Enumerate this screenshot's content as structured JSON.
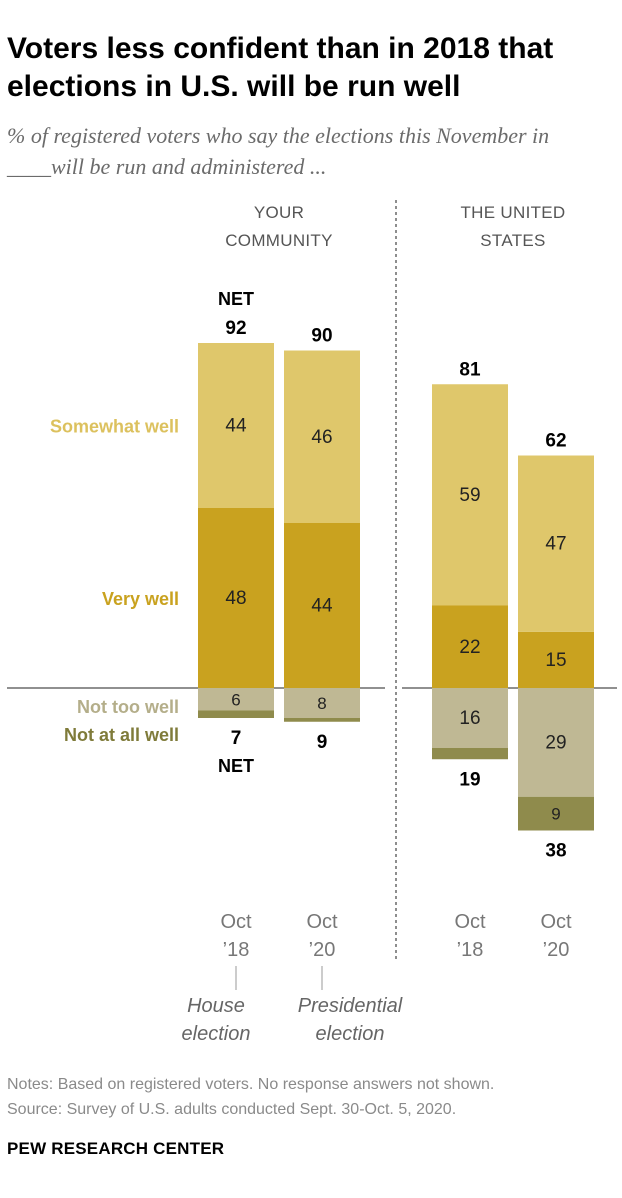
{
  "title": "Voters less confident than in 2018 that elections in U.S. will be run well",
  "subtitle": "% of registered voters who say the elections this November in ____will be run and administered ...",
  "chart_data": {
    "type": "bar",
    "stacked": "diverging",
    "groups": [
      {
        "label_lines": [
          "YOUR",
          "COMMUNITY"
        ],
        "categories": [
          "Oct ’18",
          "Oct ’20"
        ]
      },
      {
        "label_lines": [
          "THE UNITED",
          "STATES"
        ],
        "categories": [
          "Oct ’18",
          "Oct ’20"
        ]
      }
    ],
    "categories": [
      {
        "group": 0,
        "label_lines": [
          "Oct",
          "’18"
        ],
        "event_lines": [
          "House",
          "election"
        ]
      },
      {
        "group": 0,
        "label_lines": [
          "Oct",
          "’20"
        ],
        "event_lines": [
          "Presidential",
          "election"
        ]
      },
      {
        "group": 1,
        "label_lines": [
          "Oct",
          "’18"
        ]
      },
      {
        "group": 1,
        "label_lines": [
          "Oct",
          "’20"
        ]
      }
    ],
    "series": [
      {
        "name": "Very well",
        "direction": "positive",
        "color": "#c9a21f",
        "label_color": "#c9a21f",
        "values": [
          48,
          44,
          22,
          15
        ]
      },
      {
        "name": "Somewhat well",
        "direction": "positive",
        "color": "#dfc76b",
        "label_color": "#dcc15e",
        "values": [
          44,
          46,
          59,
          47
        ]
      },
      {
        "name": "Not too well",
        "direction": "negative",
        "color": "#bfb894",
        "label_color": "#b4ae8a",
        "values": [
          6,
          8,
          16,
          29
        ]
      },
      {
        "name": "Not at all well",
        "direction": "negative",
        "color": "#8f8b4c",
        "label_color": "#7f7b3a",
        "values": [
          2,
          1,
          3,
          9
        ]
      }
    ],
    "net_positive": [
      92,
      90,
      81,
      62
    ],
    "net_negative": [
      7,
      9,
      19,
      38
    ],
    "net_label": "NET",
    "grid": false,
    "legend": "left, next to segments"
  },
  "notes": "Notes: Based on registered voters. No response answers not shown.",
  "source": "Source: Survey of U.S. adults conducted Sept. 30-Oct. 5, 2020.",
  "brand": "PEW RESEARCH CENTER"
}
